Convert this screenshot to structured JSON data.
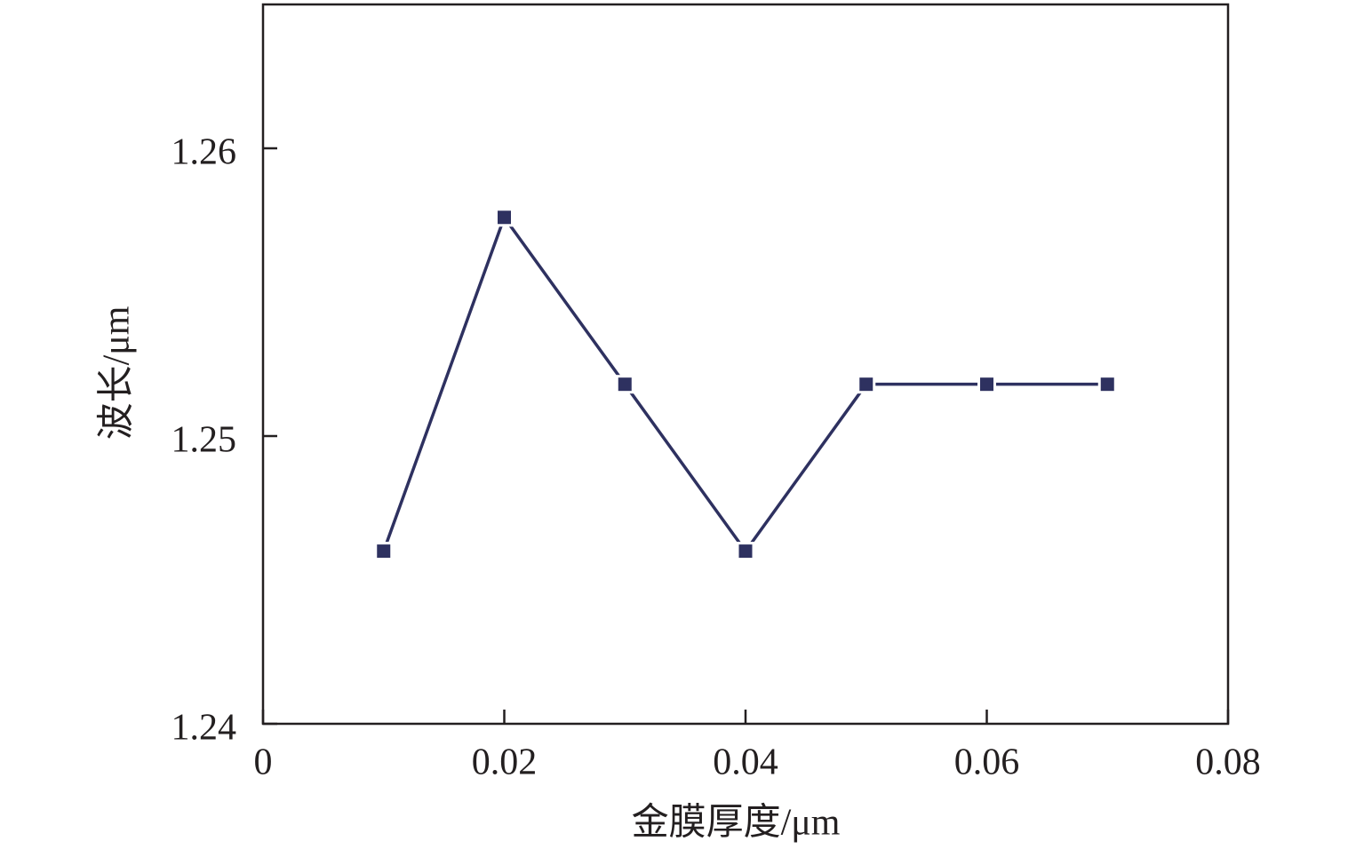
{
  "chart_data": {
    "type": "line",
    "x_label": "金膜厚度/μm",
    "y_label": "波长/μm",
    "x": [
      0.01,
      0.02,
      0.03,
      0.04,
      0.05,
      0.06,
      0.07
    ],
    "series": [
      {
        "color": "#2e3160",
        "values": [
          1.246,
          1.2576,
          1.2518,
          1.246,
          1.2518,
          1.2518,
          1.2518
        ]
      }
    ],
    "xlim": [
      0,
      0.08
    ],
    "xticks": [
      0,
      0.02,
      0.04,
      0.06,
      0.08
    ],
    "ylim": [
      1.24,
      1.265
    ],
    "yticks": [
      1.24,
      1.25,
      1.26
    ]
  }
}
